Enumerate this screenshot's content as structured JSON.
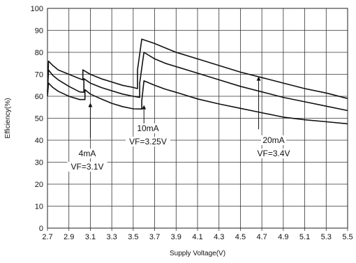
{
  "chart_data": {
    "type": "line",
    "title": "",
    "xlabel": "Supply Voltage(V)",
    "ylabel": "Efficiency(%)",
    "xlim": [
      2.7,
      5.5
    ],
    "ylim": [
      0,
      100
    ],
    "xticks": [
      "2.7",
      "2.9",
      "3.1",
      "3.3",
      "3.5",
      "3.7",
      "3.9",
      "4.1",
      "4.3",
      "4.5",
      "4.7",
      "4.9",
      "5.1",
      "5.3",
      "5.5"
    ],
    "yticks": [
      "0",
      "10",
      "20",
      "30",
      "40",
      "50",
      "60",
      "70",
      "80",
      "90",
      "100"
    ],
    "grid": true,
    "line_color": "#111111",
    "series": [
      {
        "points": [
          [
            2.7,
            60
          ],
          [
            2.71,
            66
          ],
          [
            2.75,
            64
          ],
          [
            2.8,
            62.3
          ],
          [
            2.9,
            60
          ],
          [
            3.0,
            58.5
          ],
          [
            3.05,
            58.5
          ],
          [
            3.05,
            63
          ],
          [
            3.1,
            61
          ],
          [
            3.2,
            58.8
          ],
          [
            3.3,
            56.8
          ],
          [
            3.4,
            55.3
          ],
          [
            3.5,
            54.3
          ],
          [
            3.58,
            54.2
          ],
          [
            3.58,
            58
          ],
          [
            3.6,
            67
          ],
          [
            3.7,
            65
          ],
          [
            3.8,
            63.2
          ],
          [
            3.9,
            61.8
          ],
          [
            4.1,
            58.8
          ],
          [
            4.3,
            56.5
          ],
          [
            4.5,
            54.5
          ],
          [
            4.7,
            52.5
          ],
          [
            4.9,
            50.5
          ],
          [
            5.1,
            49.3
          ],
          [
            5.3,
            48.4
          ],
          [
            5.5,
            47.5
          ]
        ]
      },
      {
        "points": [
          [
            2.7,
            61
          ],
          [
            2.71,
            72
          ],
          [
            2.75,
            69.5
          ],
          [
            2.8,
            67.5
          ],
          [
            2.9,
            64.5
          ],
          [
            3.0,
            62
          ],
          [
            3.04,
            61.8
          ],
          [
            3.04,
            68
          ],
          [
            3.1,
            66
          ],
          [
            3.2,
            64
          ],
          [
            3.3,
            62.5
          ],
          [
            3.4,
            61
          ],
          [
            3.5,
            60
          ],
          [
            3.56,
            59.5
          ],
          [
            3.56,
            66
          ],
          [
            3.6,
            80
          ],
          [
            3.7,
            77
          ],
          [
            3.8,
            75
          ],
          [
            3.9,
            73.5
          ],
          [
            4.1,
            70.5
          ],
          [
            4.3,
            67.5
          ],
          [
            4.5,
            64.5
          ],
          [
            4.7,
            62
          ],
          [
            4.9,
            59.5
          ],
          [
            5.1,
            57.5
          ],
          [
            5.3,
            55.5
          ],
          [
            5.5,
            53.5
          ]
        ]
      },
      {
        "points": [
          [
            2.7,
            62
          ],
          [
            2.71,
            76
          ],
          [
            2.75,
            74
          ],
          [
            2.8,
            72
          ],
          [
            2.9,
            70
          ],
          [
            3.0,
            68
          ],
          [
            3.03,
            67.5
          ],
          [
            3.03,
            72
          ],
          [
            3.1,
            70
          ],
          [
            3.2,
            68
          ],
          [
            3.3,
            66.5
          ],
          [
            3.4,
            65
          ],
          [
            3.5,
            64
          ],
          [
            3.54,
            63.5
          ],
          [
            3.54,
            72
          ],
          [
            3.58,
            86
          ],
          [
            3.7,
            84
          ],
          [
            3.8,
            82
          ],
          [
            3.9,
            80
          ],
          [
            4.1,
            77
          ],
          [
            4.3,
            74
          ],
          [
            4.5,
            71
          ],
          [
            4.7,
            68.5
          ],
          [
            4.9,
            66
          ],
          [
            5.1,
            63.5
          ],
          [
            5.3,
            61.5
          ],
          [
            5.5,
            59
          ]
        ]
      }
    ],
    "annotations": [
      {
        "id": "a4",
        "lines": [
          "4mA",
          "VF=3.1V"
        ],
        "arrow_x": 3.1,
        "arrow_from_y": 41,
        "arrow_to_y": 57
      },
      {
        "id": "a10",
        "lines": [
          "10mA",
          "VF=3.25V"
        ],
        "arrow_x": 3.6,
        "arrow_from_y": 47,
        "arrow_to_y": 56
      },
      {
        "id": "a20",
        "lines": [
          "20mA",
          "VF=3.4V"
        ],
        "arrow_x": 4.67,
        "arrow_from_y": 45,
        "arrow_to_y": 69
      }
    ]
  }
}
